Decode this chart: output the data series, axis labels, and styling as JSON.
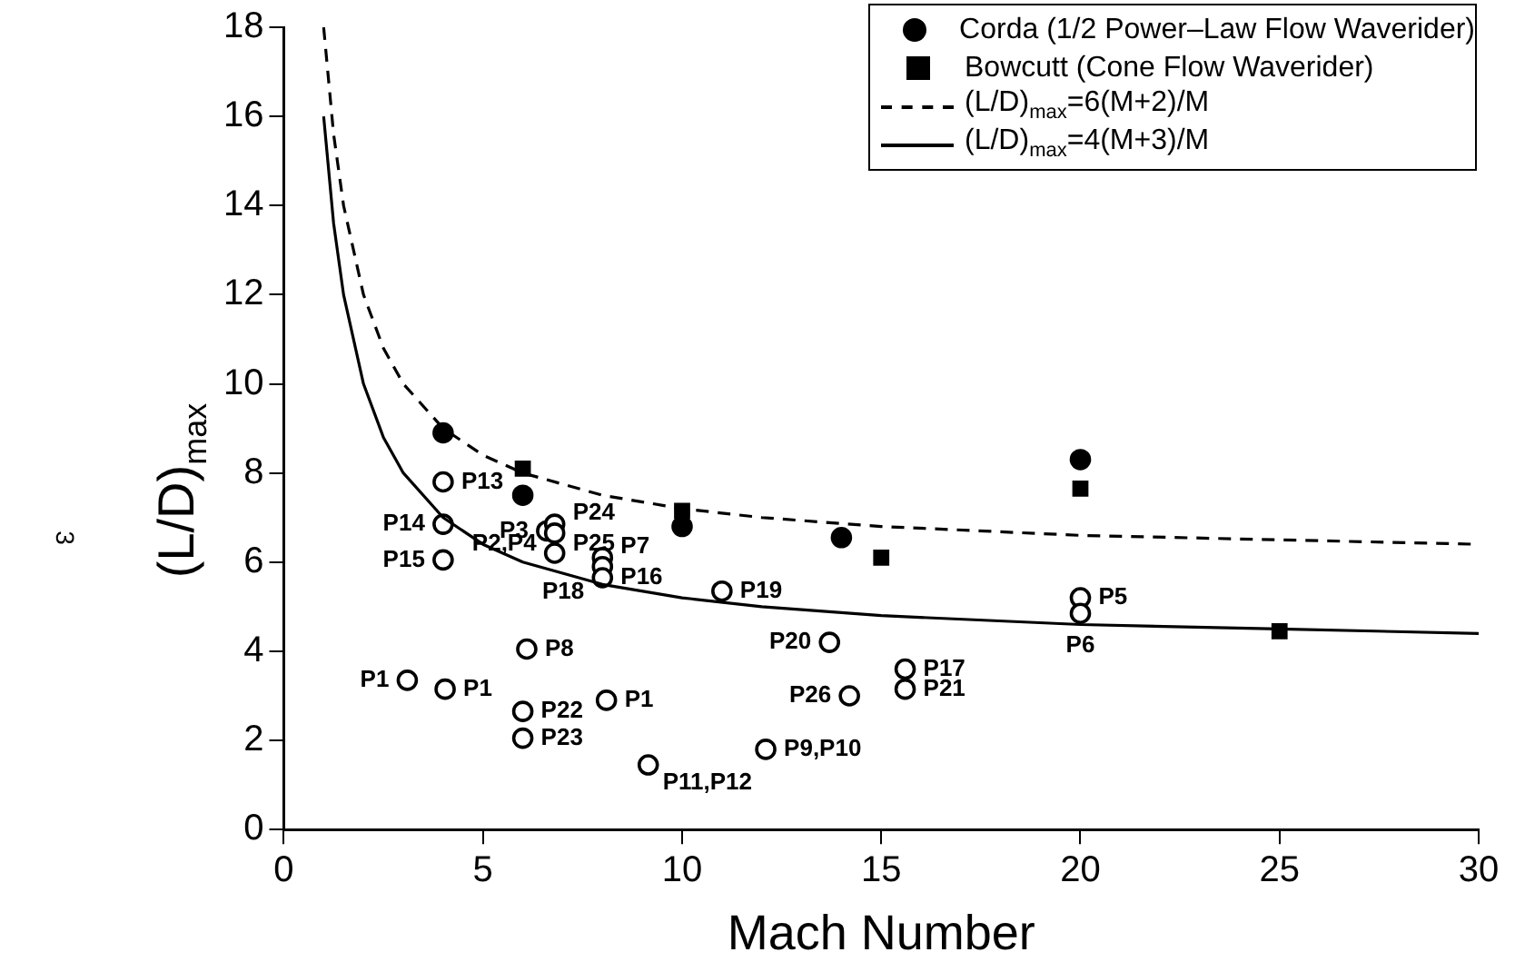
{
  "chart_data": {
    "type": "scatter",
    "xlabel": "Mach Number",
    "ylabel": "(L/D)$_{max}$",
    "xlim": [
      0,
      30
    ],
    "xticks": [
      0,
      5,
      10,
      15,
      20,
      25,
      30
    ],
    "ylim": [
      0,
      18
    ],
    "yticks": [
      0,
      2,
      4,
      6,
      8,
      10,
      12,
      14,
      16,
      18
    ],
    "grid": false,
    "legend": "top right",
    "series": [
      {
        "name": "Corda (1/2 Power–Law Flow Waverider)",
        "marker": "circle",
        "color": "#000000",
        "x": [
          4,
          6,
          10,
          14,
          20
        ],
        "values": [
          8.9,
          7.5,
          6.8,
          6.55,
          8.3
        ]
      },
      {
        "name": "Bowcutt (Cone Flow Waverider)",
        "marker": "square",
        "color": "#000000",
        "x": [
          6,
          10,
          15,
          20,
          25
        ],
        "values": [
          8.1,
          7.15,
          6.1,
          7.65,
          4.45
        ]
      },
      {
        "name": "(L/D)$_{max}$=6(M+2)/M",
        "type": "line",
        "line_style": "dashed",
        "marker": "none",
        "color": "#000000",
        "x": [
          1,
          1.25,
          1.5,
          2,
          2.5,
          3,
          4,
          5,
          6,
          8,
          10,
          12,
          15,
          20,
          25,
          30
        ],
        "values": [
          18,
          15.6,
          14,
          12,
          10.8,
          10,
          9,
          8.4,
          8,
          7.5,
          7.2,
          7,
          6.8,
          6.6,
          6.5,
          6.4
        ]
      },
      {
        "name": "(L/D)$_{max}$=4(M+3)/M",
        "type": "line",
        "line_style": "solid",
        "marker": "none",
        "color": "#000000",
        "x": [
          1,
          1.25,
          1.5,
          2,
          2.5,
          3,
          4,
          5,
          6,
          8,
          10,
          12,
          15,
          20,
          25,
          30
        ],
        "values": [
          16,
          13.6,
          12,
          10,
          8.8,
          8,
          7,
          6.4,
          6,
          5.5,
          5.2,
          5,
          4.8,
          4.6,
          4.5,
          4.4
        ]
      },
      {
        "marker": "circle",
        "color": "#ffffff",
        "x": [
          4,
          4,
          4,
          6.6,
          6.8,
          6.8,
          6.8,
          8,
          8,
          8,
          11,
          6.1,
          3.1,
          4.05,
          6,
          6,
          8.1,
          9.15,
          12.1,
          13.7,
          14.2,
          15.6,
          15.6,
          20,
          20
        ],
        "values": [
          7.8,
          6.85,
          6.05,
          6.7,
          6.85,
          6.65,
          6.2,
          6.1,
          5.9,
          5.65,
          5.35,
          4.05,
          3.35,
          3.15,
          2.65,
          2.05,
          2.9,
          1.45,
          1.8,
          4.2,
          3.0,
          3.6,
          3.15,
          5.2,
          4.85
        ]
      }
    ],
    "annotations": [
      {
        "text": "P13",
        "x": 4,
        "y": 7.8
      },
      {
        "text": "P14",
        "x": 4,
        "y": 6.85
      },
      {
        "text": "P15",
        "x": 4,
        "y": 6.05
      },
      {
        "text": "P3",
        "x": 6.6,
        "y": 6.7
      },
      {
        "text": "P24",
        "x": 6.8,
        "y": 6.85
      },
      {
        "text": "P25",
        "x": 6.8,
        "y": 6.65
      },
      {
        "text": "P2,P4",
        "x": 6.8,
        "y": 6.2
      },
      {
        "text": "P7",
        "x": 8,
        "y": 6.1
      },
      {
        "text": "P16",
        "x": 8,
        "y": 5.9
      },
      {
        "text": "P18",
        "x": 8,
        "y": 5.65
      },
      {
        "text": "P19",
        "x": 11,
        "y": 5.35
      },
      {
        "text": "P8",
        "x": 6.1,
        "y": 4.05
      },
      {
        "text": "P1",
        "x": 3.1,
        "y": 3.35
      },
      {
        "text": "P1",
        "x": 4.05,
        "y": 3.15
      },
      {
        "text": "P22",
        "x": 6,
        "y": 2.65
      },
      {
        "text": "P23",
        "x": 6,
        "y": 2.05
      },
      {
        "text": "P1",
        "x": 8.1,
        "y": 2.9
      },
      {
        "text": "P11,P12",
        "x": 9.15,
        "y": 1.45
      },
      {
        "text": "P9,P10",
        "x": 12.1,
        "y": 1.8
      },
      {
        "text": "P20",
        "x": 13.7,
        "y": 4.2
      },
      {
        "text": "P26",
        "x": 14.2,
        "y": 3.0
      },
      {
        "text": "P17",
        "x": 15.6,
        "y": 3.6
      },
      {
        "text": "P21",
        "x": 15.6,
        "y": 3.15
      },
      {
        "text": "P5",
        "x": 20,
        "y": 5.2
      },
      {
        "text": "P6",
        "x": 20,
        "y": 4.85
      },
      "3"
    ]
  }
}
